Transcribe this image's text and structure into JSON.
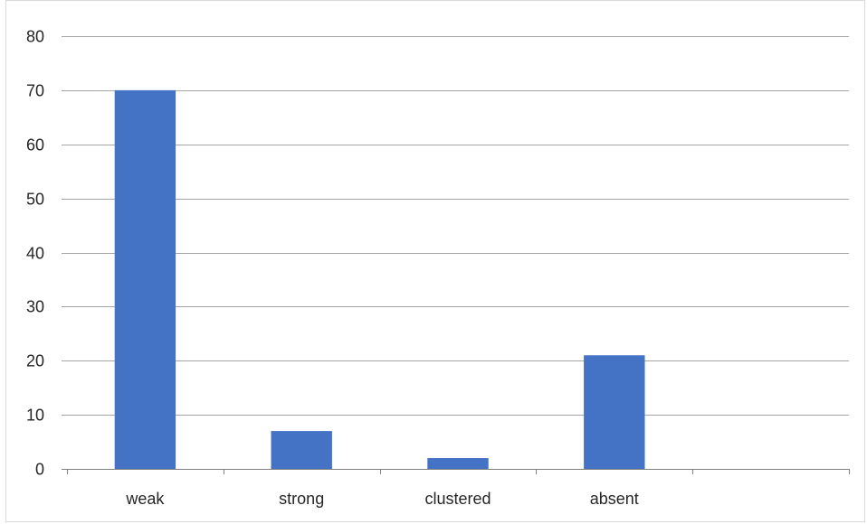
{
  "chart_data": {
    "type": "bar",
    "title": "",
    "xlabel": "",
    "ylabel": "",
    "categories": [
      "weak",
      "strong",
      "clustered",
      "absent",
      ""
    ],
    "values": [
      70,
      7,
      2,
      21,
      null
    ],
    "ylim": [
      0,
      80
    ],
    "yticks": [
      0,
      10,
      20,
      30,
      40,
      50,
      60,
      70,
      80
    ],
    "grid": true,
    "legend": "none",
    "colors": {
      "bar": "#4472c4",
      "grid": "#a6a6a6",
      "axis": "#808080",
      "text": "#262626"
    }
  }
}
